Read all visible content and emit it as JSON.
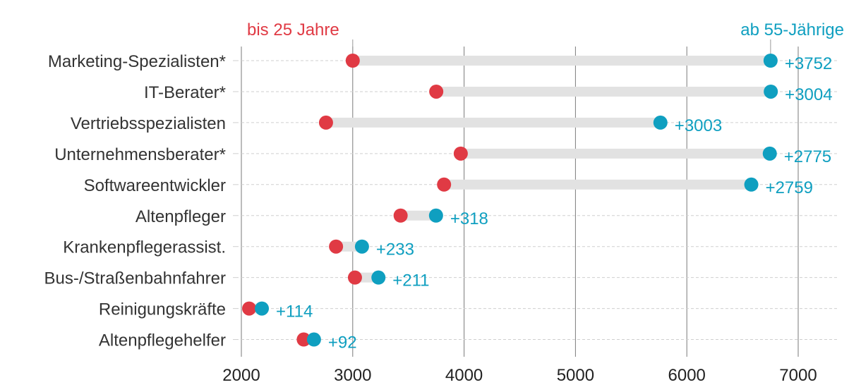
{
  "chart_data": {
    "type": "dumbbell",
    "title": "",
    "xlabel": "",
    "ylabel": "",
    "xlim": [
      2000,
      7350
    ],
    "xticks": [
      2000,
      3000,
      4000,
      5000,
      6000,
      7000
    ],
    "tick_labels": [
      "2000",
      "3000",
      "4000",
      "5000",
      "6000",
      "7000"
    ],
    "categories": [
      "Marketing-Spezialisten*",
      "IT-Berater*",
      "Vertriebsspezialisten",
      "Unternehmensberater*",
      "Softwareentwickler",
      "Altenpfleger",
      "Krankenpflegerassist.",
      "Bus-/Straßenbahnfahrer",
      "Reinigungskräfte",
      "Altenpflegehelfer"
    ],
    "series": [
      {
        "name": "bis 25 Jahre",
        "color": "#e03a44",
        "values": [
          3000,
          3750,
          2760,
          3970,
          3820,
          3430,
          2850,
          3020,
          2070,
          2560
        ]
      },
      {
        "name": "ab 55-Jährige",
        "color": "#0f9fc0",
        "values": [
          6752,
          6754,
          5763,
          6745,
          6579,
          3748,
          3083,
          3231,
          2184,
          2652
        ]
      }
    ],
    "differences": [
      "+3752",
      "+3004",
      "+3003",
      "+2775",
      "+2759",
      "+318",
      "+233",
      "+211",
      "+114",
      "+92"
    ],
    "legend": {
      "young_label": "bis 25 Jahre",
      "old_label": "ab 55-Jährige",
      "young_anchor_value": 3000,
      "old_anchor_value": 6752
    },
    "colors": {
      "young": "#e03a44",
      "old": "#0f9fc0",
      "bar": "#e2e2e2",
      "gridline": "#7a7a7a",
      "row_guide": "#cfcfcf"
    }
  }
}
